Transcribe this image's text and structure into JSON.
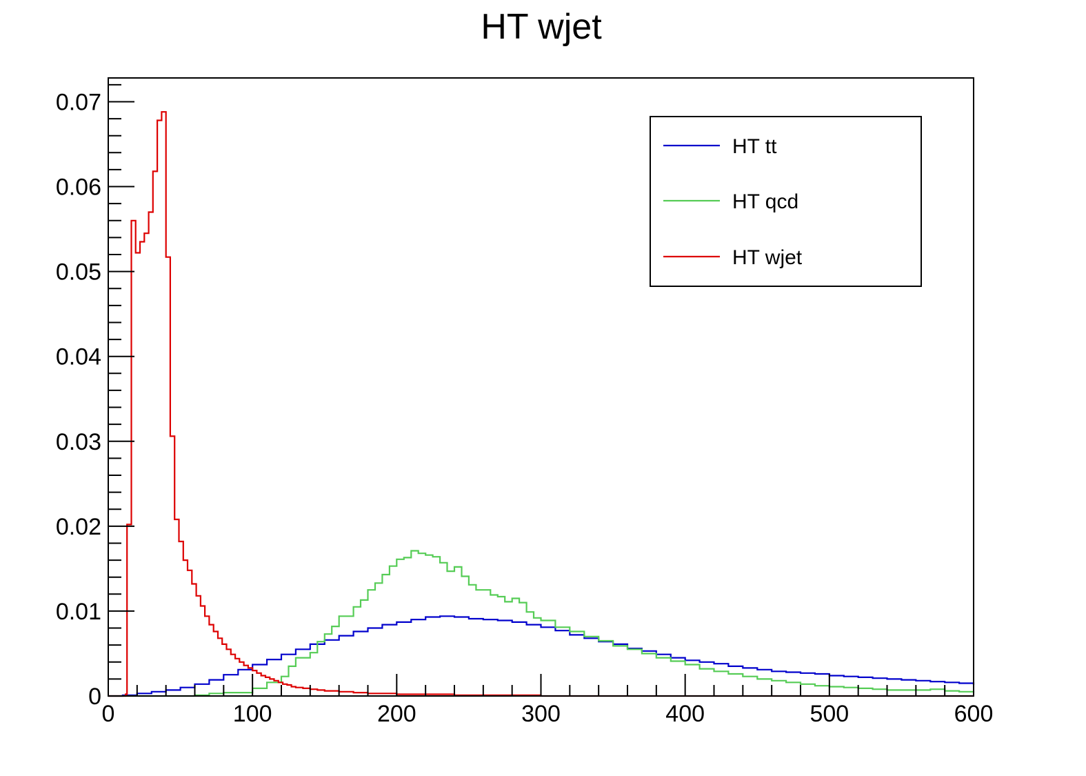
{
  "chart_data": {
    "type": "step-histogram",
    "title": "HT wjet",
    "xlabel": "",
    "ylabel": "",
    "xlim": [
      0,
      600
    ],
    "ylim": [
      0,
      0.0728
    ],
    "x_major_ticks": [
      0,
      100,
      200,
      300,
      400,
      500,
      600
    ],
    "x_tick_labels": [
      "0",
      "100",
      "200",
      "300",
      "400",
      "500",
      "600"
    ],
    "y_major_ticks": [
      0,
      0.01,
      0.02,
      0.03,
      0.04,
      0.05,
      0.06,
      0.07
    ],
    "y_tick_labels": [
      "0",
      "0.01",
      "0.02",
      "0.03",
      "0.04",
      "0.05",
      "0.06",
      "0.07"
    ],
    "grid": false,
    "legend": {
      "position": "top-right",
      "bordered": true
    },
    "series": [
      {
        "name": "HT tt",
        "color": "#0000cc",
        "points": [
          [
            0,
            0
          ],
          [
            10,
            0.0001
          ],
          [
            20,
            0.0003
          ],
          [
            30,
            0.0005
          ],
          [
            40,
            0.0007
          ],
          [
            50,
            0.001
          ],
          [
            60,
            0.0014
          ],
          [
            70,
            0.0019
          ],
          [
            80,
            0.0025
          ],
          [
            90,
            0.0031
          ],
          [
            100,
            0.0037
          ],
          [
            110,
            0.0043
          ],
          [
            120,
            0.0049
          ],
          [
            130,
            0.0055
          ],
          [
            140,
            0.0061
          ],
          [
            150,
            0.0066
          ],
          [
            160,
            0.0071
          ],
          [
            170,
            0.0076
          ],
          [
            180,
            0.008
          ],
          [
            190,
            0.0084
          ],
          [
            200,
            0.0087
          ],
          [
            210,
            0.009
          ],
          [
            220,
            0.0093
          ],
          [
            230,
            0.0094
          ],
          [
            240,
            0.0093
          ],
          [
            250,
            0.0091
          ],
          [
            260,
            0.009
          ],
          [
            270,
            0.0089
          ],
          [
            280,
            0.0087
          ],
          [
            290,
            0.0084
          ],
          [
            300,
            0.0081
          ],
          [
            310,
            0.0077
          ],
          [
            320,
            0.0072
          ],
          [
            330,
            0.0068
          ],
          [
            340,
            0.0064
          ],
          [
            350,
            0.0061
          ],
          [
            360,
            0.0056
          ],
          [
            370,
            0.0053
          ],
          [
            380,
            0.0049
          ],
          [
            390,
            0.0045
          ],
          [
            400,
            0.0042
          ],
          [
            410,
            0.004
          ],
          [
            420,
            0.0038
          ],
          [
            430,
            0.0035
          ],
          [
            440,
            0.0033
          ],
          [
            450,
            0.0031
          ],
          [
            460,
            0.0029
          ],
          [
            470,
            0.0028
          ],
          [
            480,
            0.0027
          ],
          [
            490,
            0.0026
          ],
          [
            500,
            0.0024
          ],
          [
            510,
            0.0023
          ],
          [
            520,
            0.0022
          ],
          [
            530,
            0.0021
          ],
          [
            540,
            0.002
          ],
          [
            550,
            0.0019
          ],
          [
            560,
            0.0018
          ],
          [
            570,
            0.0017
          ],
          [
            580,
            0.0016
          ],
          [
            590,
            0.0015
          ],
          [
            600,
            0.0013
          ]
        ]
      },
      {
        "name": "HT qcd",
        "color": "#55cc55",
        "points": [
          [
            0,
            0
          ],
          [
            50,
            0
          ],
          [
            60,
            0.0001
          ],
          [
            70,
            0.0003
          ],
          [
            80,
            0.0004
          ],
          [
            90,
            0.0004
          ],
          [
            100,
            0.0009
          ],
          [
            110,
            0.0016
          ],
          [
            120,
            0.0023
          ],
          [
            125,
            0.0035
          ],
          [
            130,
            0.0045
          ],
          [
            140,
            0.0051
          ],
          [
            145,
            0.0064
          ],
          [
            150,
            0.0073
          ],
          [
            155,
            0.0082
          ],
          [
            160,
            0.0094
          ],
          [
            170,
            0.0105
          ],
          [
            175,
            0.0113
          ],
          [
            180,
            0.0125
          ],
          [
            185,
            0.0133
          ],
          [
            190,
            0.0143
          ],
          [
            195,
            0.0153
          ],
          [
            200,
            0.0161
          ],
          [
            205,
            0.0163
          ],
          [
            210,
            0.0171
          ],
          [
            215,
            0.0168
          ],
          [
            220,
            0.0166
          ],
          [
            225,
            0.0164
          ],
          [
            230,
            0.0157
          ],
          [
            235,
            0.0147
          ],
          [
            240,
            0.0152
          ],
          [
            245,
            0.0141
          ],
          [
            250,
            0.0131
          ],
          [
            255,
            0.0125
          ],
          [
            260,
            0.0125
          ],
          [
            265,
            0.0119
          ],
          [
            270,
            0.0117
          ],
          [
            275,
            0.0111
          ],
          [
            280,
            0.0115
          ],
          [
            285,
            0.011
          ],
          [
            290,
            0.0099
          ],
          [
            295,
            0.0092
          ],
          [
            300,
            0.0089
          ],
          [
            310,
            0.0081
          ],
          [
            320,
            0.0076
          ],
          [
            330,
            0.007
          ],
          [
            340,
            0.0065
          ],
          [
            350,
            0.0059
          ],
          [
            360,
            0.0055
          ],
          [
            370,
            0.005
          ],
          [
            380,
            0.0045
          ],
          [
            390,
            0.0041
          ],
          [
            400,
            0.0037
          ],
          [
            410,
            0.0032
          ],
          [
            420,
            0.0029
          ],
          [
            430,
            0.0026
          ],
          [
            440,
            0.0023
          ],
          [
            450,
            0.002
          ],
          [
            460,
            0.0018
          ],
          [
            470,
            0.0016
          ],
          [
            480,
            0.0014
          ],
          [
            490,
            0.0012
          ],
          [
            500,
            0.0011
          ],
          [
            510,
            0.001
          ],
          [
            520,
            0.0009
          ],
          [
            530,
            0.0008
          ],
          [
            540,
            0.0007
          ],
          [
            550,
            0.0007
          ],
          [
            560,
            0.0007
          ],
          [
            570,
            0.0008
          ],
          [
            580,
            0.0006
          ],
          [
            590,
            0.0005
          ],
          [
            600,
            0.0004
          ]
        ]
      },
      {
        "name": "HT wjet",
        "color": "#dd0000",
        "points": [
          [
            0,
            0
          ],
          [
            12,
            0.0002
          ],
          [
            13,
            0.0202
          ],
          [
            16,
            0.056
          ],
          [
            19,
            0.0522
          ],
          [
            22,
            0.0535
          ],
          [
            25,
            0.0545
          ],
          [
            28,
            0.057
          ],
          [
            31,
            0.0618
          ],
          [
            34,
            0.0678
          ],
          [
            37,
            0.0688
          ],
          [
            40,
            0.0517
          ],
          [
            43,
            0.0306
          ],
          [
            46,
            0.0208
          ],
          [
            49,
            0.0182
          ],
          [
            52,
            0.016
          ],
          [
            55,
            0.0148
          ],
          [
            58,
            0.0132
          ],
          [
            61,
            0.0118
          ],
          [
            64,
            0.0106
          ],
          [
            67,
            0.0094
          ],
          [
            70,
            0.0084
          ],
          [
            73,
            0.0076
          ],
          [
            76,
            0.0068
          ],
          [
            79,
            0.0061
          ],
          [
            82,
            0.0055
          ],
          [
            85,
            0.0049
          ],
          [
            88,
            0.0044
          ],
          [
            91,
            0.004
          ],
          [
            94,
            0.0036
          ],
          [
            97,
            0.0033
          ],
          [
            100,
            0.003
          ],
          [
            103,
            0.0027
          ],
          [
            106,
            0.0024
          ],
          [
            109,
            0.0022
          ],
          [
            112,
            0.002
          ],
          [
            115,
            0.0018
          ],
          [
            118,
            0.0016
          ],
          [
            121,
            0.0014
          ],
          [
            124,
            0.0013
          ],
          [
            127,
            0.0011
          ],
          [
            130,
            0.001
          ],
          [
            135,
            0.0009
          ],
          [
            140,
            0.0008
          ],
          [
            145,
            0.0007
          ],
          [
            150,
            0.0006
          ],
          [
            160,
            0.0005
          ],
          [
            170,
            0.0004
          ],
          [
            180,
            0.0003
          ],
          [
            190,
            0.0003
          ],
          [
            200,
            0.0002
          ],
          [
            220,
            0.0002
          ],
          [
            240,
            0.0001
          ],
          [
            260,
            0.0001
          ],
          [
            280,
            0.0001
          ],
          [
            300,
            0
          ],
          [
            600,
            0
          ]
        ]
      }
    ]
  }
}
